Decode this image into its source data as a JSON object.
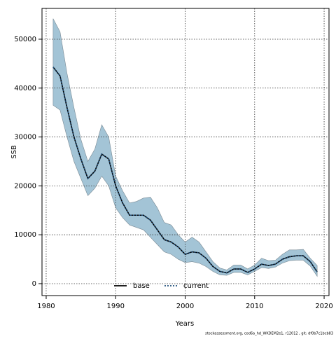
{
  "chart_data": {
    "type": "line",
    "x_label": "Years",
    "y_label": "SSB",
    "footer": "stockassessment.org, cod6a_hd_WKDEM2e1, r12012 , git: df0b7c1bcb83",
    "x": [
      1981,
      1982,
      1983,
      1984,
      1985,
      1986,
      1987,
      1988,
      1989,
      1990,
      1991,
      1992,
      1993,
      1994,
      1995,
      1996,
      1997,
      1998,
      1999,
      2000,
      2001,
      2002,
      2003,
      2004,
      2005,
      2006,
      2007,
      2008,
      2009,
      2010,
      2011,
      2012,
      2013,
      2014,
      2015,
      2016,
      2017,
      2018,
      2019
    ],
    "band": {
      "color": "#a3c4d6",
      "upper": [
        54200,
        51500,
        43000,
        36000,
        29500,
        25000,
        27500,
        32500,
        30000,
        22000,
        19000,
        16500,
        16800,
        17500,
        17700,
        15500,
        12500,
        12000,
        10000,
        8500,
        9500,
        8500,
        6500,
        4500,
        3200,
        2800,
        3800,
        3800,
        3000,
        3800,
        5200,
        4700,
        4800,
        6000,
        6900,
        6900,
        7000,
        5200,
        3700
      ],
      "lower": [
        36500,
        35500,
        30000,
        25000,
        21500,
        18000,
        19500,
        22000,
        20000,
        15500,
        13500,
        12000,
        11500,
        11000,
        9500,
        8000,
        6500,
        6000,
        5000,
        4300,
        4500,
        4200,
        3500,
        2500,
        1800,
        1700,
        2300,
        2300,
        1800,
        2500,
        3300,
        3100,
        3400,
        4200,
        4700,
        4800,
        4800,
        3600,
        1500
      ]
    },
    "series": [
      {
        "name": "base",
        "color": "#000000",
        "dash": false,
        "values": [
          44300,
          42500,
          36000,
          30000,
          25500,
          21500,
          23000,
          26500,
          25500,
          20000,
          16500,
          14000,
          14000,
          14000,
          13000,
          11000,
          9000,
          8500,
          7500,
          6000,
          6500,
          6300,
          5200,
          3500,
          2500,
          2200,
          3000,
          3000,
          2300,
          3000,
          4000,
          3700,
          4000,
          5000,
          5500,
          5700,
          5700,
          4500,
          2400
        ]
      },
      {
        "name": "current",
        "color": "#1f4e79",
        "dash": true,
        "values": [
          44300,
          42500,
          36000,
          30000,
          25500,
          21500,
          23000,
          26500,
          25500,
          20000,
          16500,
          14000,
          14000,
          14000,
          13000,
          11000,
          9000,
          8500,
          7500,
          6000,
          6500,
          6300,
          5200,
          3500,
          2500,
          2200,
          3000,
          3000,
          2300,
          3000,
          4000,
          3700,
          4000,
          5000,
          5500,
          5700,
          5700,
          4500,
          2400
        ]
      }
    ],
    "xlim": [
      1979.4,
      2020.7
    ],
    "xticks": [
      1980,
      1990,
      2000,
      2010,
      2020
    ],
    "ylim": [
      -2440,
      56300
    ],
    "yticks": [
      0,
      10000,
      20000,
      30000,
      40000,
      50000
    ],
    "grid": true,
    "legend": "bottom"
  }
}
